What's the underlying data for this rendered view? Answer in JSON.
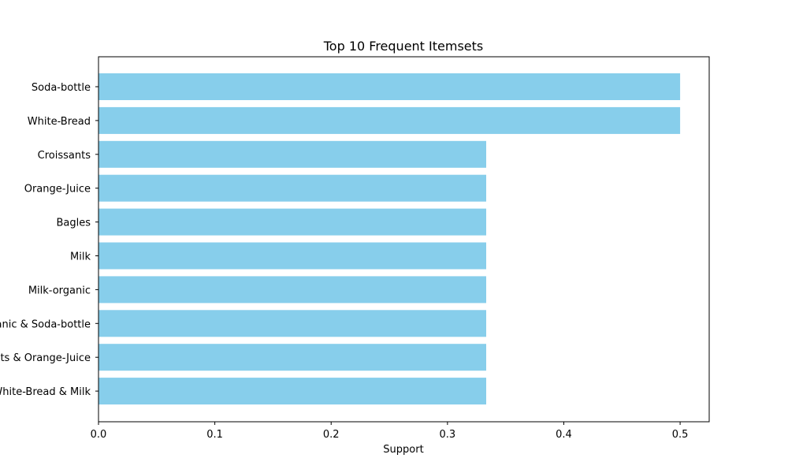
{
  "chart_data": {
    "type": "bar",
    "orientation": "horizontal",
    "title": "Top 10 Frequent Itemsets",
    "xlabel": "Support",
    "ylabel": "",
    "categories": [
      "Soda-bottle",
      "White-Bread",
      "Croissants",
      "Orange-Juice",
      "Bagles",
      "Milk",
      "Milk-organic",
      "Milk-organic & Soda-bottle",
      "Croissants & Orange-Juice",
      "White-Bread & Milk"
    ],
    "values": [
      0.5,
      0.5,
      0.3333,
      0.3333,
      0.3333,
      0.3333,
      0.3333,
      0.3333,
      0.3333,
      0.3333
    ],
    "xlim": [
      0,
      0.525
    ],
    "xticks": [
      0.0,
      0.1,
      0.2,
      0.3,
      0.4,
      0.5
    ],
    "xtick_labels": [
      "0.0",
      "0.1",
      "0.2",
      "0.3",
      "0.4",
      "0.5"
    ],
    "bar_color": "#87ceeb",
    "grid": false,
    "legend": "none"
  }
}
